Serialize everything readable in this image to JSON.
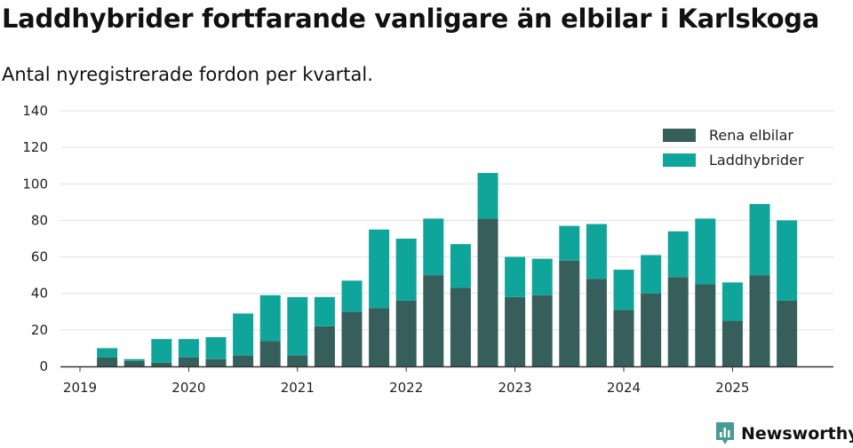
{
  "header": {
    "title": "Laddhybrider fortfarande vanligare än elbilar i Karlskoga",
    "subtitle": "Antal nyregistrerade fordon per kvartal."
  },
  "brand": {
    "name": "Newsworthy",
    "icon": "newsworthy-logo-icon",
    "color": "#4a9a94"
  },
  "colors": {
    "elbilar": "#365f5b",
    "laddhybrider": "#10a59b",
    "grid": "#e1e1e1",
    "axis": "#333333"
  },
  "chart_data": {
    "type": "bar",
    "stacked": true,
    "title": "Laddhybrider fortfarande vanligare än elbilar i Karlskoga",
    "subtitle": "Antal nyregistrerade fordon per kvartal.",
    "xlabel": "",
    "ylabel": "",
    "ylim": [
      0,
      140
    ],
    "yticks": [
      0,
      20,
      40,
      60,
      80,
      100,
      120,
      140
    ],
    "xticks": [
      "2019",
      "2020",
      "2021",
      "2022",
      "2023",
      "2024",
      "2025"
    ],
    "grid": true,
    "legend_position": "top-right",
    "categories": [
      "2019Q1",
      "2019Q2",
      "2019Q3",
      "2019Q4",
      "2020Q1",
      "2020Q2",
      "2020Q3",
      "2020Q4",
      "2021Q1",
      "2021Q2",
      "2021Q3",
      "2021Q4",
      "2022Q1",
      "2022Q2",
      "2022Q3",
      "2022Q4",
      "2023Q1",
      "2023Q2",
      "2023Q3",
      "2023Q4",
      "2024Q1",
      "2024Q2",
      "2024Q3",
      "2024Q4",
      "2025Q1",
      "2025Q2",
      "2025Q3"
    ],
    "series": [
      {
        "name": "Rena elbilar",
        "values": [
          0,
          5,
          3,
          2,
          5,
          4,
          6,
          14,
          6,
          22,
          30,
          32,
          36,
          50,
          43,
          81,
          38,
          39,
          58,
          48,
          31,
          40,
          49,
          45,
          25,
          50,
          36
        ]
      },
      {
        "name": "Laddhybrider",
        "values": [
          0,
          5,
          1,
          13,
          10,
          12,
          23,
          25,
          32,
          16,
          17,
          43,
          34,
          31,
          24,
          25,
          22,
          20,
          19,
          30,
          22,
          21,
          25,
          36,
          21,
          39,
          44
        ]
      }
    ]
  }
}
